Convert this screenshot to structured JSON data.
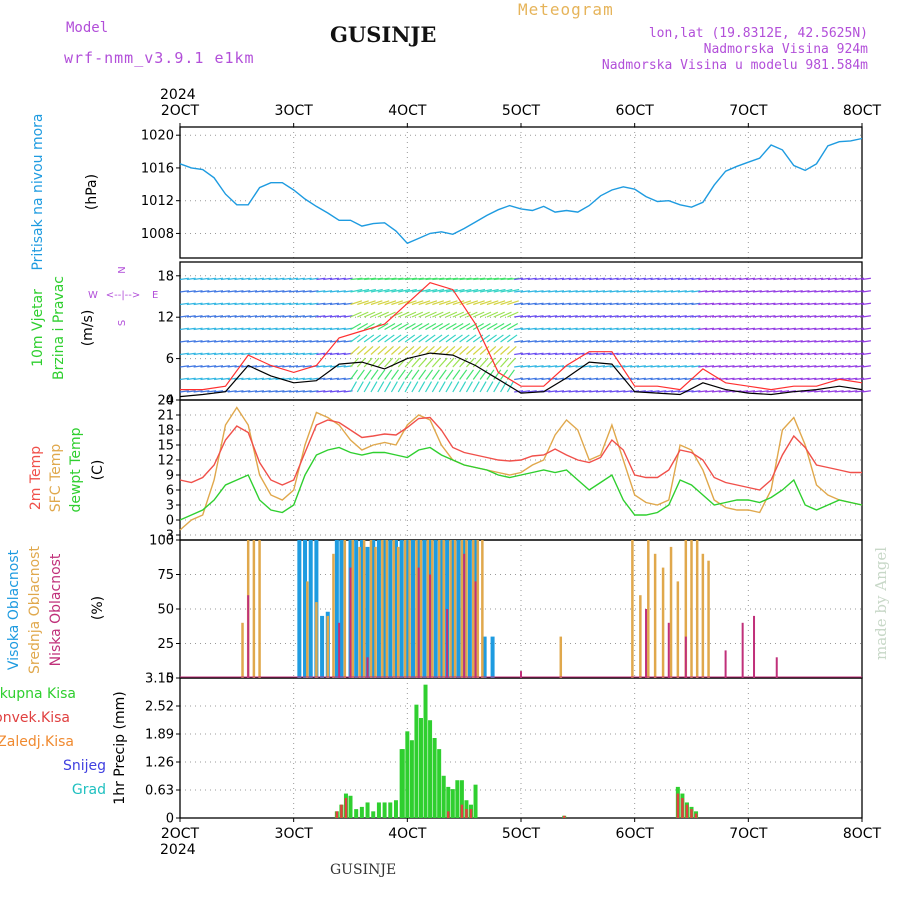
{
  "header": {
    "model_label": "Model",
    "model_name": "wrf-nmm_v3.9.1 e1km",
    "station": "GUSINJE",
    "title": "Meteogram",
    "coords": "lon,lat (19.8312E, 42.5625N)",
    "elevation": "Nadmorska Visina 924m",
    "model_elevation": "Nadmorska Visina u modelu 981.584m"
  },
  "footer": {
    "station": "GUSINJE",
    "watermark": "made by Angel"
  },
  "x_axis": {
    "year": "2024",
    "ticks": [
      "2OCT",
      "3OCT",
      "4OCT",
      "5OCT",
      "6OCT",
      "7OCT",
      "8OCT"
    ],
    "days": [
      2,
      3,
      4,
      5,
      6,
      7,
      8
    ]
  },
  "colors": {
    "pressure": "#1e9be0",
    "temp2m": "#f0504a",
    "sfc": "#e0a84c",
    "dewpt": "#2fcf2f",
    "cloud_high": "#1e9be0",
    "cloud_mid": "#e0a84c",
    "cloud_low": "#c0307a",
    "rain_total": "#2fcf2f",
    "rain_conv": "#e04040",
    "rain_strat": "#f08a30",
    "snow": "#4040e0",
    "graupel": "#20c0c0",
    "wind_label": "#2fcf2f",
    "wind_axis": "#b24fd9"
  },
  "chart_data": [
    {
      "type": "line",
      "title": "",
      "ylabel": [
        "Pritisak na nivou mora",
        "(hPa)"
      ],
      "ylim": [
        1005,
        1021
      ],
      "yticks": [
        "1008",
        "1012",
        "1016",
        "1020"
      ],
      "series": [
        {
          "name": "Pritisak na nivou mora",
          "x": [
            2,
            2.1,
            2.2,
            2.3,
            2.4,
            2.5,
            2.6,
            2.7,
            2.8,
            2.9,
            3.0,
            3.1,
            3.2,
            3.3,
            3.4,
            3.5,
            3.6,
            3.7,
            3.8,
            3.9,
            4.0,
            4.1,
            4.2,
            4.3,
            4.4,
            4.5,
            4.6,
            4.7,
            4.8,
            4.9,
            5.0,
            5.1,
            5.2,
            5.3,
            5.4,
            5.5,
            5.6,
            5.7,
            5.8,
            5.9,
            6.0,
            6.1,
            6.2,
            6.3,
            6.4,
            6.5,
            6.6,
            6.7,
            6.8,
            6.9,
            7.0,
            7.1,
            7.2,
            7.3,
            7.4,
            7.5,
            7.6,
            7.7,
            7.8,
            7.9,
            8.0
          ],
          "y": [
            1016.5,
            1016,
            1015.8,
            1014.8,
            1012.8,
            1011.5,
            1011.5,
            1013.6,
            1014.2,
            1014.2,
            1013.3,
            1012.2,
            1011.3,
            1010.5,
            1009.6,
            1009.6,
            1008.9,
            1009.2,
            1009.3,
            1008.3,
            1006.8,
            1007.4,
            1008.0,
            1008.2,
            1007.9,
            1008.6,
            1009.4,
            1010.2,
            1010.9,
            1011.4,
            1011.0,
            1010.8,
            1011.3,
            1010.6,
            1010.8,
            1010.6,
            1011.4,
            1012.6,
            1013.3,
            1013.7,
            1013.4,
            1012.5,
            1011.9,
            1012.0,
            1011.5,
            1011.2,
            1011.8,
            1013.9,
            1015.6,
            1016.2,
            1016.7,
            1017.2,
            1018.8,
            1018.2,
            1016.3,
            1015.7,
            1016.5,
            1018.7,
            1019.2,
            1019.3,
            1019.6
          ]
        }
      ]
    },
    {
      "type": "line",
      "title": "",
      "ylabel": [
        "10m Vjetar",
        "Brzina i Pravac",
        "(m/s)"
      ],
      "direction_labels": [
        "W",
        "<--|-->",
        "E",
        "N",
        "S"
      ],
      "ylim": [
        0,
        20
      ],
      "yticks": [
        "0",
        "6",
        "12",
        "18"
      ],
      "series": [
        {
          "name": "Brzina",
          "x": [
            2,
            2.2,
            2.4,
            2.6,
            2.8,
            3.0,
            3.2,
            3.4,
            3.6,
            3.8,
            4.0,
            4.2,
            4.4,
            4.6,
            4.8,
            5.0,
            5.2,
            5.4,
            5.6,
            5.8,
            6.0,
            6.2,
            6.4,
            6.6,
            6.8,
            7.0,
            7.2,
            7.4,
            7.6,
            7.8,
            8.0
          ],
          "y": [
            0.5,
            0.8,
            1.2,
            5.0,
            3.5,
            2.5,
            2.8,
            5.2,
            5.5,
            4.5,
            6.0,
            6.8,
            6.5,
            5.0,
            3.0,
            1.0,
            1.2,
            3.2,
            5.5,
            5.2,
            1.2,
            1.0,
            0.8,
            2.5,
            1.5,
            1.0,
            0.8,
            1.2,
            1.5,
            2.0,
            1.5
          ]
        },
        {
          "name": "Udari",
          "x": [
            2,
            2.2,
            2.4,
            2.6,
            2.8,
            3.0,
            3.2,
            3.4,
            3.6,
            3.8,
            4.0,
            4.2,
            4.4,
            4.6,
            4.8,
            5.0,
            5.2,
            5.4,
            5.6,
            5.8,
            6.0,
            6.2,
            6.4,
            6.6,
            6.8,
            7.0,
            7.2,
            7.4,
            7.6,
            7.8,
            8.0
          ],
          "y": [
            1.5,
            1.5,
            2.0,
            6.5,
            5.0,
            4.0,
            5.0,
            9.0,
            10.0,
            11.0,
            14.0,
            17.0,
            16.0,
            11.0,
            4.0,
            2.0,
            2.0,
            5.0,
            7.0,
            7.0,
            2.0,
            2.0,
            1.5,
            4.5,
            2.5,
            2.0,
            1.5,
            2.0,
            2.0,
            3.0,
            2.5
          ]
        }
      ]
    },
    {
      "type": "line",
      "title": "",
      "ylabel": [
        "2m Temp",
        "SFC Temp",
        "dewpt Temp",
        "(C)"
      ],
      "ylim": [
        -4,
        24
      ],
      "yticks": [
        "-3",
        "0",
        "3",
        "6",
        "9",
        "12",
        "15",
        "18",
        "21",
        "24"
      ],
      "series": [
        {
          "name": "2m Temp",
          "x": [
            2,
            2.1,
            2.2,
            2.3,
            2.4,
            2.5,
            2.6,
            2.7,
            2.8,
            2.9,
            3.0,
            3.1,
            3.2,
            3.3,
            3.4,
            3.5,
            3.6,
            3.7,
            3.8,
            3.9,
            4.0,
            4.1,
            4.2,
            4.3,
            4.4,
            4.5,
            4.6,
            4.7,
            4.8,
            4.9,
            5.0,
            5.1,
            5.2,
            5.3,
            5.4,
            5.5,
            5.6,
            5.7,
            5.8,
            5.9,
            6.0,
            6.1,
            6.2,
            6.3,
            6.4,
            6.5,
            6.6,
            6.7,
            6.8,
            6.9,
            7.0,
            7.1,
            7.2,
            7.3,
            7.4,
            7.5,
            7.6,
            7.7,
            7.8,
            7.9,
            8.0
          ],
          "y": [
            8,
            7.5,
            8.5,
            11,
            16,
            18.8,
            17.5,
            11.5,
            8,
            7,
            8,
            13.5,
            19,
            20,
            19.5,
            18,
            16.5,
            16.8,
            17.2,
            17,
            18.5,
            20.3,
            20.5,
            18,
            14.5,
            13.5,
            13,
            12.5,
            12,
            11.8,
            12,
            12.8,
            13,
            14.2,
            13,
            12,
            11.5,
            12.5,
            16,
            14,
            9,
            8.5,
            8.5,
            10,
            14,
            13.5,
            12,
            8.5,
            7.5,
            7,
            6.5,
            6,
            8,
            13,
            16.8,
            14.5,
            11,
            10.5,
            10,
            9.5,
            9.5
          ]
        },
        {
          "name": "SFC Temp",
          "x": [
            2,
            2.1,
            2.2,
            2.3,
            2.4,
            2.5,
            2.6,
            2.7,
            2.8,
            2.9,
            3.0,
            3.1,
            3.2,
            3.3,
            3.4,
            3.5,
            3.6,
            3.7,
            3.8,
            3.9,
            4.0,
            4.1,
            4.2,
            4.3,
            4.4,
            4.5,
            4.6,
            4.7,
            4.8,
            4.9,
            5.0,
            5.1,
            5.2,
            5.3,
            5.4,
            5.5,
            5.6,
            5.7,
            5.8,
            5.9,
            6.0,
            6.1,
            6.2,
            6.3,
            6.4,
            6.5,
            6.6,
            6.7,
            6.8,
            6.9,
            7.0,
            7.1,
            7.2,
            7.3,
            7.4,
            7.5,
            7.6,
            7.7,
            7.8,
            7.9,
            8.0
          ],
          "y": [
            -2,
            0,
            1,
            8,
            19,
            22.5,
            19,
            9,
            5,
            4,
            6,
            15,
            21.5,
            20.5,
            19,
            16,
            14,
            15,
            15.5,
            15,
            19,
            21,
            20,
            15,
            12,
            11,
            10.5,
            10,
            9.5,
            9,
            9.5,
            11,
            12,
            17,
            20,
            18,
            12,
            13,
            19,
            12,
            5,
            3.5,
            3,
            4,
            15,
            14,
            10,
            4,
            2.5,
            2,
            2,
            1.5,
            6,
            18,
            20.5,
            15,
            7,
            5,
            4,
            3.5,
            3
          ]
        },
        {
          "name": "dewpt Temp",
          "x": [
            2,
            2.1,
            2.2,
            2.3,
            2.4,
            2.5,
            2.6,
            2.7,
            2.8,
            2.9,
            3.0,
            3.1,
            3.2,
            3.3,
            3.4,
            3.5,
            3.6,
            3.7,
            3.8,
            3.9,
            4.0,
            4.1,
            4.2,
            4.3,
            4.4,
            4.5,
            4.6,
            4.7,
            4.8,
            4.9,
            5.0,
            5.1,
            5.2,
            5.3,
            5.4,
            5.5,
            5.6,
            5.7,
            5.8,
            5.9,
            6.0,
            6.1,
            6.2,
            6.3,
            6.4,
            6.5,
            6.6,
            6.7,
            6.8,
            6.9,
            7.0,
            7.1,
            7.2,
            7.3,
            7.4,
            7.5,
            7.6,
            7.7,
            7.8,
            7.9,
            8.0
          ],
          "y": [
            0,
            1,
            2,
            4,
            7,
            8,
            9,
            4,
            2,
            1.5,
            3,
            9,
            13,
            14,
            14.5,
            13.5,
            13,
            13.5,
            13.5,
            13,
            12.5,
            14,
            14.5,
            13,
            12,
            11,
            10.5,
            10,
            9,
            8.5,
            9,
            9.5,
            10,
            9.5,
            10,
            8,
            6,
            7.5,
            9,
            4,
            1,
            1,
            1.5,
            3,
            8,
            7,
            5,
            3,
            3.5,
            4,
            4,
            3.5,
            4.5,
            6,
            8,
            3,
            2,
            3,
            4,
            3.5,
            3
          ]
        }
      ]
    },
    {
      "type": "bar",
      "title": "",
      "ylabel": [
        "Visoka Oblacnost",
        "Srednja Oblacnost",
        "Niska Oblacnost",
        "(%)"
      ],
      "ylim": [
        0,
        100
      ],
      "yticks": [
        "0",
        "25",
        "50",
        "75",
        "100"
      ],
      "series": [
        {
          "name": "Visoka Oblacnost",
          "x": [
            3.05,
            3.1,
            3.15,
            3.2,
            3.25,
            3.3,
            3.38,
            3.42,
            3.5,
            3.55,
            3.6,
            3.65,
            3.7,
            3.75,
            3.8,
            3.85,
            3.9,
            3.95,
            4.0,
            4.05,
            4.1,
            4.15,
            4.2,
            4.25,
            4.3,
            4.35,
            4.4,
            4.45,
            4.5,
            4.55,
            4.6,
            4.68,
            4.75
          ],
          "y": [
            100,
            100,
            100,
            100,
            45,
            48,
            100,
            100,
            100,
            100,
            100,
            95,
            100,
            100,
            100,
            100,
            100,
            100,
            100,
            100,
            100,
            100,
            100,
            100,
            100,
            100,
            100,
            100,
            100,
            100,
            100,
            30,
            30
          ]
        },
        {
          "name": "Srednja Oblacnost",
          "x": [
            2.55,
            2.6,
            2.65,
            2.7,
            3.12,
            3.2,
            3.3,
            3.35,
            3.45,
            3.52,
            3.58,
            3.62,
            3.68,
            3.72,
            3.78,
            3.82,
            3.88,
            3.92,
            3.98,
            4.02,
            4.08,
            4.12,
            4.18,
            4.22,
            4.28,
            4.32,
            4.38,
            4.42,
            4.48,
            4.52,
            4.58,
            4.62,
            4.66,
            5.35,
            5.98,
            6.05,
            6.12,
            6.18,
            6.25,
            6.32,
            6.38,
            6.45,
            6.5,
            6.55,
            6.6,
            6.65
          ],
          "y": [
            40,
            100,
            100,
            100,
            70,
            55,
            45,
            90,
            100,
            100,
            95,
            100,
            100,
            95,
            100,
            100,
            100,
            95,
            100,
            100,
            100,
            100,
            100,
            100,
            100,
            100,
            100,
            100,
            100,
            100,
            100,
            100,
            100,
            30,
            100,
            60,
            100,
            90,
            80,
            95,
            70,
            100,
            100,
            100,
            90,
            85
          ]
        },
        {
          "name": "Niska Oblacnost",
          "x": [
            2.6,
            3.4,
            3.5,
            3.65,
            4.1,
            4.2,
            4.35,
            4.5,
            4.6,
            5.0,
            6.1,
            6.3,
            6.45,
            6.8,
            6.95,
            7.05,
            7.25
          ],
          "y": [
            60,
            40,
            80,
            15,
            80,
            75,
            50,
            90,
            70,
            5,
            50,
            40,
            30,
            20,
            40,
            45,
            15
          ]
        }
      ]
    },
    {
      "type": "bar",
      "title": "",
      "ylabel": [
        "Ukupna Kisa",
        "Konvek.Kisa",
        "Zaledj.Kisa",
        "Snijeg",
        "Grad",
        "1hr Precip (mm)"
      ],
      "ylim": [
        0,
        3.15
      ],
      "yticks": [
        "0",
        "0.63",
        "1.26",
        "1.89",
        "2.52",
        "3.15"
      ],
      "series": [
        {
          "name": "Ukupna Kisa",
          "x": [
            3.38,
            3.42,
            3.46,
            3.5,
            3.55,
            3.6,
            3.65,
            3.7,
            3.75,
            3.8,
            3.85,
            3.9,
            3.95,
            3.96,
            4.0,
            4.04,
            4.08,
            4.12,
            4.16,
            4.2,
            4.24,
            4.28,
            4.32,
            4.36,
            4.4,
            4.44,
            4.48,
            4.52,
            4.56,
            4.6,
            5.38,
            6.38,
            6.42,
            6.46,
            6.5,
            6.54
          ],
          "y": [
            0.15,
            0.3,
            0.55,
            0.5,
            0.2,
            0.25,
            0.35,
            0.15,
            0.35,
            0.35,
            0.35,
            0.4,
            1.55,
            1.55,
            1.95,
            1.75,
            2.55,
            2.25,
            3.0,
            2.2,
            1.8,
            1.55,
            0.95,
            0.7,
            0.65,
            0.85,
            0.85,
            0.4,
            0.3,
            0.75,
            0.05,
            0.7,
            0.55,
            0.35,
            0.25,
            0.15
          ]
        },
        {
          "name": "Konvek.Kisa",
          "x": [
            3.38,
            3.42,
            3.46,
            4.36,
            4.48,
            4.52,
            4.56,
            5.38,
            6.38,
            6.42,
            6.46,
            6.5,
            6.54
          ],
          "y": [
            0.15,
            0.3,
            0.45,
            0.15,
            0.3,
            0.2,
            0.2,
            0.05,
            0.55,
            0.45,
            0.3,
            0.2,
            0.1
          ]
        }
      ]
    }
  ]
}
